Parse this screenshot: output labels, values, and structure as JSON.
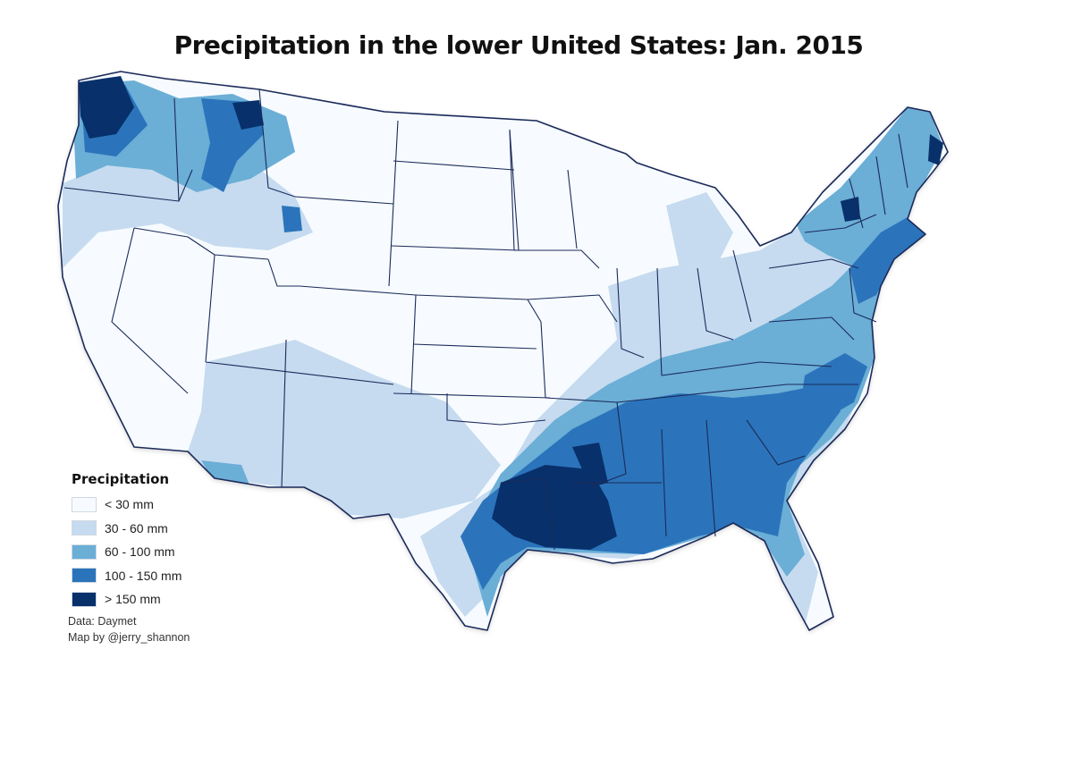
{
  "title": "Precipitation in the lower United States: Jan. 2015",
  "legend": {
    "title": "Precipitation",
    "items": [
      {
        "label": "< 30 mm",
        "color": "#f7fbff"
      },
      {
        "label": "30 - 60 mm",
        "color": "#c6dbef"
      },
      {
        "label": "60 - 100 mm",
        "color": "#6baed6"
      },
      {
        "label": "100 - 150 mm",
        "color": "#2b74bb"
      },
      {
        "label": "> 150 mm",
        "color": "#08306b"
      }
    ]
  },
  "credits": {
    "data": "Data: Daymet",
    "author": "Map by @jerry_shannon"
  },
  "map": {
    "border_color": "#1b2a5a",
    "pattern_summary": "Wettest along the Gulf Coast (Louisiana, Mississippi) and NW Washington; moderate in the Southeast and Northeast; driest across the Great Plains, Great Basin and upper Midwest."
  }
}
